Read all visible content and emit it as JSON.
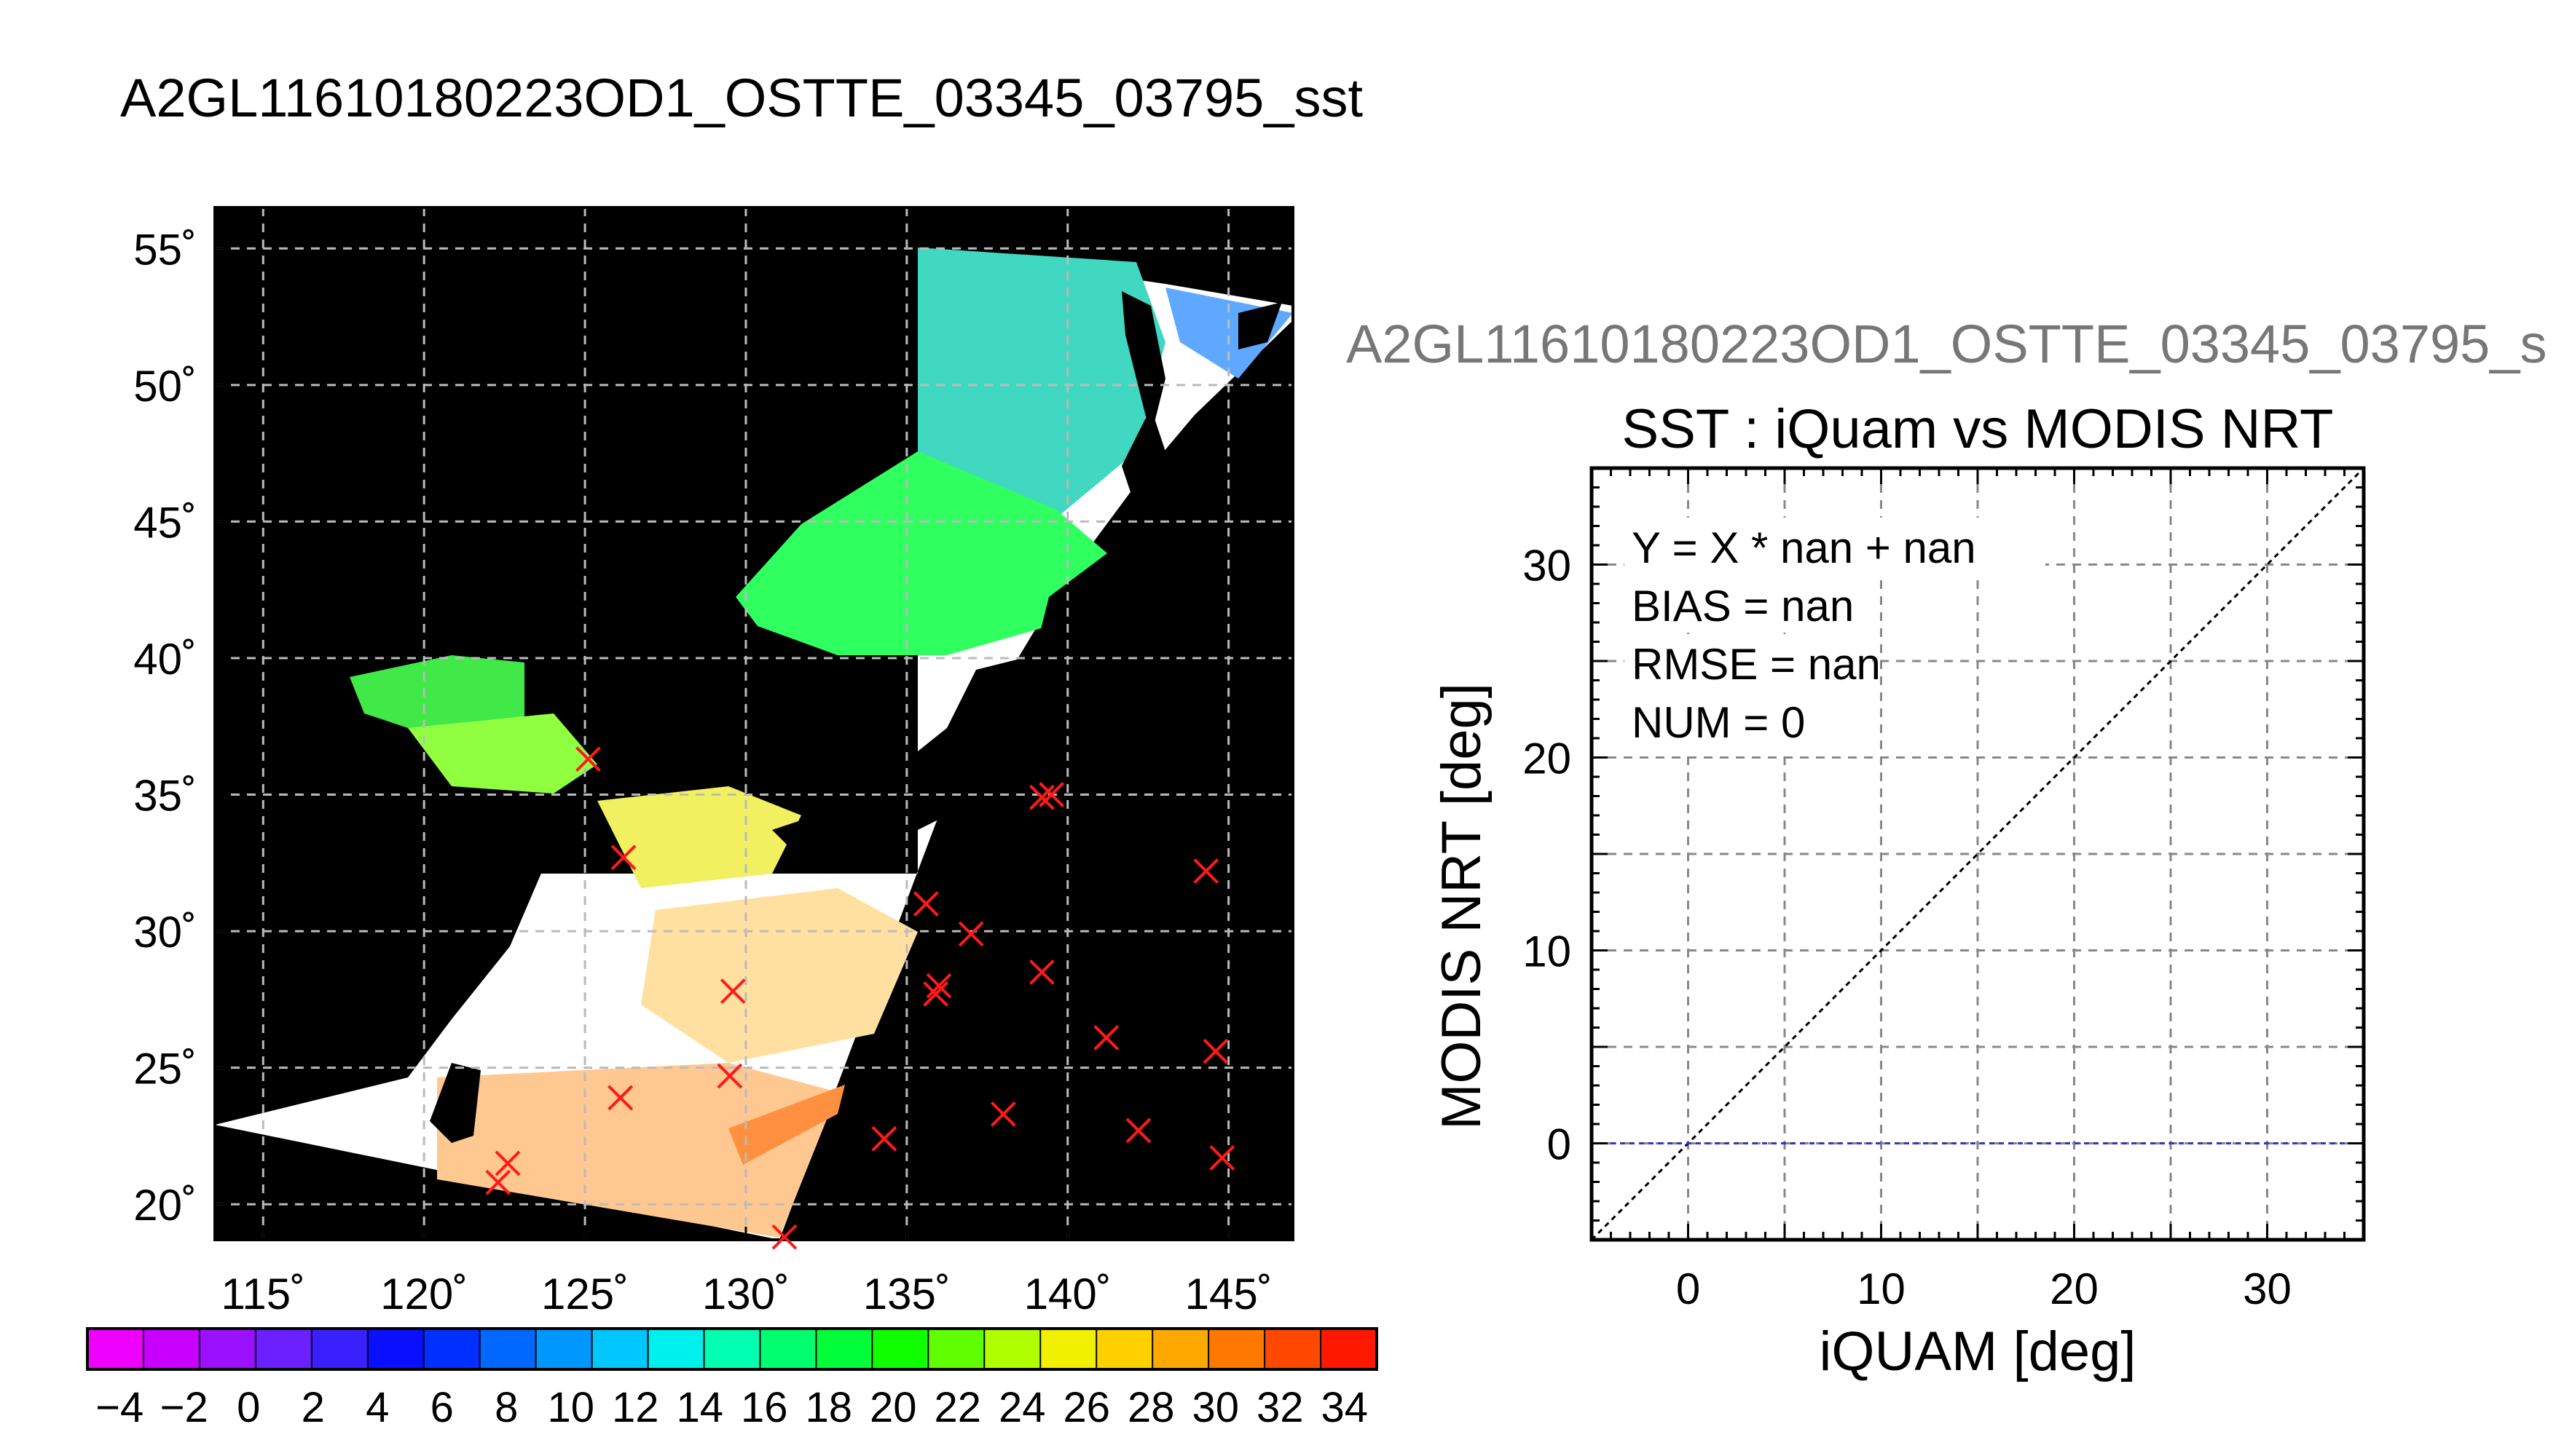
{
  "header": {
    "title": "A2GL11610180223OD1_OSTTE_03345_03795_sst"
  },
  "right_header": {
    "title": "A2GL11610180223OD1_OSTTE_03345_03795_s"
  },
  "colors": {
    "background": "#000000",
    "cross": "#ff1a1a",
    "bias_line": "#3333cc"
  },
  "chart_data": [
    {
      "type": "scatter",
      "title": "",
      "xlabel": "",
      "ylabel": "",
      "x_ticks": [
        "115˚",
        "120˚",
        "125˚",
        "130˚",
        "135˚",
        "140˚",
        "145˚"
      ],
      "y_ticks": [
        "20˚",
        "25˚",
        "30˚",
        "35˚",
        "40˚",
        "45˚",
        "50˚",
        "55˚"
      ],
      "xlim": [
        113.5,
        147
      ],
      "ylim": [
        18.7,
        56.5
      ],
      "grid": true,
      "series": [
        {
          "marker": "x",
          "x": [
            125.1,
            126.2,
            129.6,
            129.5,
            126.1,
            122.6,
            122.3,
            131.2,
            134.3,
            135.6,
            135.9,
            136.0,
            137.0,
            139.2,
            139.2,
            139.5,
            138.0,
            141.2,
            142.2,
            144.3,
            144.6,
            144.8
          ],
          "y": [
            36.3,
            32.7,
            27.8,
            24.7,
            23.9,
            21.5,
            20.8,
            18.8,
            22.4,
            31.0,
            27.7,
            28.0,
            29.9,
            28.5,
            34.9,
            35.0,
            23.3,
            26.1,
            22.7,
            32.2,
            25.6,
            21.7
          ]
        }
      ]
    },
    {
      "type": "line",
      "title": "SST : iQuam vs MODIS NRT",
      "xlabel": "iQUAM [deg]",
      "ylabel": "MODIS NRT [deg]",
      "xlim": [
        -5,
        35
      ],
      "ylim": [
        -5,
        35
      ],
      "x_ticks": [
        "0",
        "10",
        "20",
        "30"
      ],
      "y_ticks": [
        "0",
        "10",
        "20",
        "30"
      ],
      "grid": true,
      "annotations": [
        "Y = X * nan + nan",
        "BIAS = nan",
        "RMSE = nan",
        "NUM = 0"
      ],
      "series": [
        {
          "x": [
            -5,
            35
          ],
          "values": [
            -5,
            35
          ]
        },
        {
          "x": [
            -5,
            35
          ],
          "values": [
            0,
            0
          ]
        }
      ]
    },
    {
      "type": "heatmap",
      "colorbar_ticks": [
        "−4",
        "−2",
        "0",
        "2",
        "4",
        "6",
        "8",
        "10",
        "12",
        "14",
        "16",
        "18",
        "20",
        "22",
        "24",
        "26",
        "28",
        "30",
        "32",
        "34"
      ],
      "range": [
        -5,
        35
      ],
      "colors": [
        "#ee00ff",
        "#c800ff",
        "#9a10ff",
        "#6a20ff",
        "#3a20ff",
        "#0a10ff",
        "#0030ff",
        "#0068ff",
        "#0098ff",
        "#00c8ff",
        "#00f0ee",
        "#00ffb0",
        "#00ff70",
        "#00ff38",
        "#10ff00",
        "#60ff00",
        "#b0ff00",
        "#f0f000",
        "#ffd000",
        "#ffa800",
        "#ff7800",
        "#ff4800",
        "#ff1800"
      ]
    }
  ]
}
